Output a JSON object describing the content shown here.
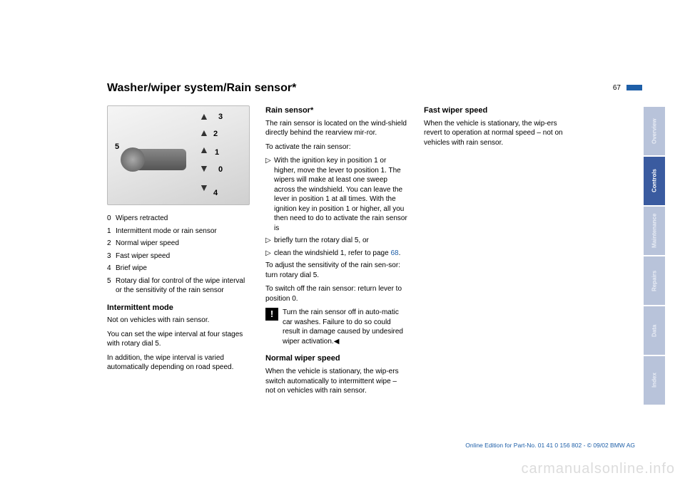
{
  "page_number": "67",
  "title": "Washer/wiper system/Rain sensor*",
  "illustration": {
    "labels": {
      "n0": "0",
      "n1": "1",
      "n2": "2",
      "n3": "3",
      "n4": "4",
      "n5": "5"
    }
  },
  "legend": [
    {
      "num": "0",
      "text": "Wipers retracted"
    },
    {
      "num": "1",
      "text": "Intermittent mode or rain sensor"
    },
    {
      "num": "2",
      "text": "Normal wiper speed"
    },
    {
      "num": "3",
      "text": "Fast wiper speed"
    },
    {
      "num": "4",
      "text": "Brief wipe"
    },
    {
      "num": "5",
      "text": "Rotary dial for control of the wipe interval or the sensitivity of the rain sensor"
    }
  ],
  "col1": {
    "intermittent_head": "Intermittent mode",
    "intermittent_p1": "Not on vehicles with rain sensor.",
    "intermittent_p2": "You can set the wipe interval at four stages with rotary dial 5.",
    "intermittent_p3": "In addition, the wipe interval is varied automatically depending on road speed."
  },
  "col2": {
    "rain_head": "Rain sensor*",
    "rain_p1": "The rain sensor is located on the wind-shield directly behind the rearview mir-ror.",
    "rain_p2": "To activate the rain sensor:",
    "rain_b1": "With the ignition key in position 1 or higher, move the lever to position 1. The wipers will make at least one sweep across the windshield. You can leave the lever in position 1 at all times. With the ignition key in position 1 or higher, all you then need to do to activate the rain sensor is",
    "rain_b2": "briefly turn the rotary dial 5, or",
    "rain_b3a": "clean the windshield 1, refer to page ",
    "rain_b3_link": "68",
    "rain_b3b": ".",
    "rain_p3": "To adjust the sensitivity of the rain sen-sor: turn rotary dial 5.",
    "rain_p4": "To switch off the rain sensor: return lever to position 0.",
    "warn": "Turn the rain sensor off in auto-matic car washes. Failure to do so could result in damage caused by undesired wiper activation.",
    "endmark": "◀",
    "normal_head": "Normal wiper speed",
    "normal_p1": "When the vehicle is stationary, the wip-ers switch automatically to intermittent wipe – not on vehicles with rain sensor."
  },
  "col3": {
    "fast_head": "Fast wiper speed",
    "fast_p1": "When the vehicle is stationary, the wip-ers revert to operation at normal speed – not on vehicles with rain sensor."
  },
  "tabs": {
    "overview": "Overview",
    "controls": "Controls",
    "maintenance": "Maintenance",
    "repairs": "Repairs",
    "data": "Data",
    "index": "Index"
  },
  "footer": "Online Edition for Part-No. 01 41 0 156 802 - © 09/02 BMW AG",
  "watermark": "carmanualsonline.info",
  "colors": {
    "accent": "#1e5fa8",
    "tab_active": "#3a5ba0",
    "tab_inactive": "#b8c3da",
    "watermark": "#dcdcdc"
  }
}
